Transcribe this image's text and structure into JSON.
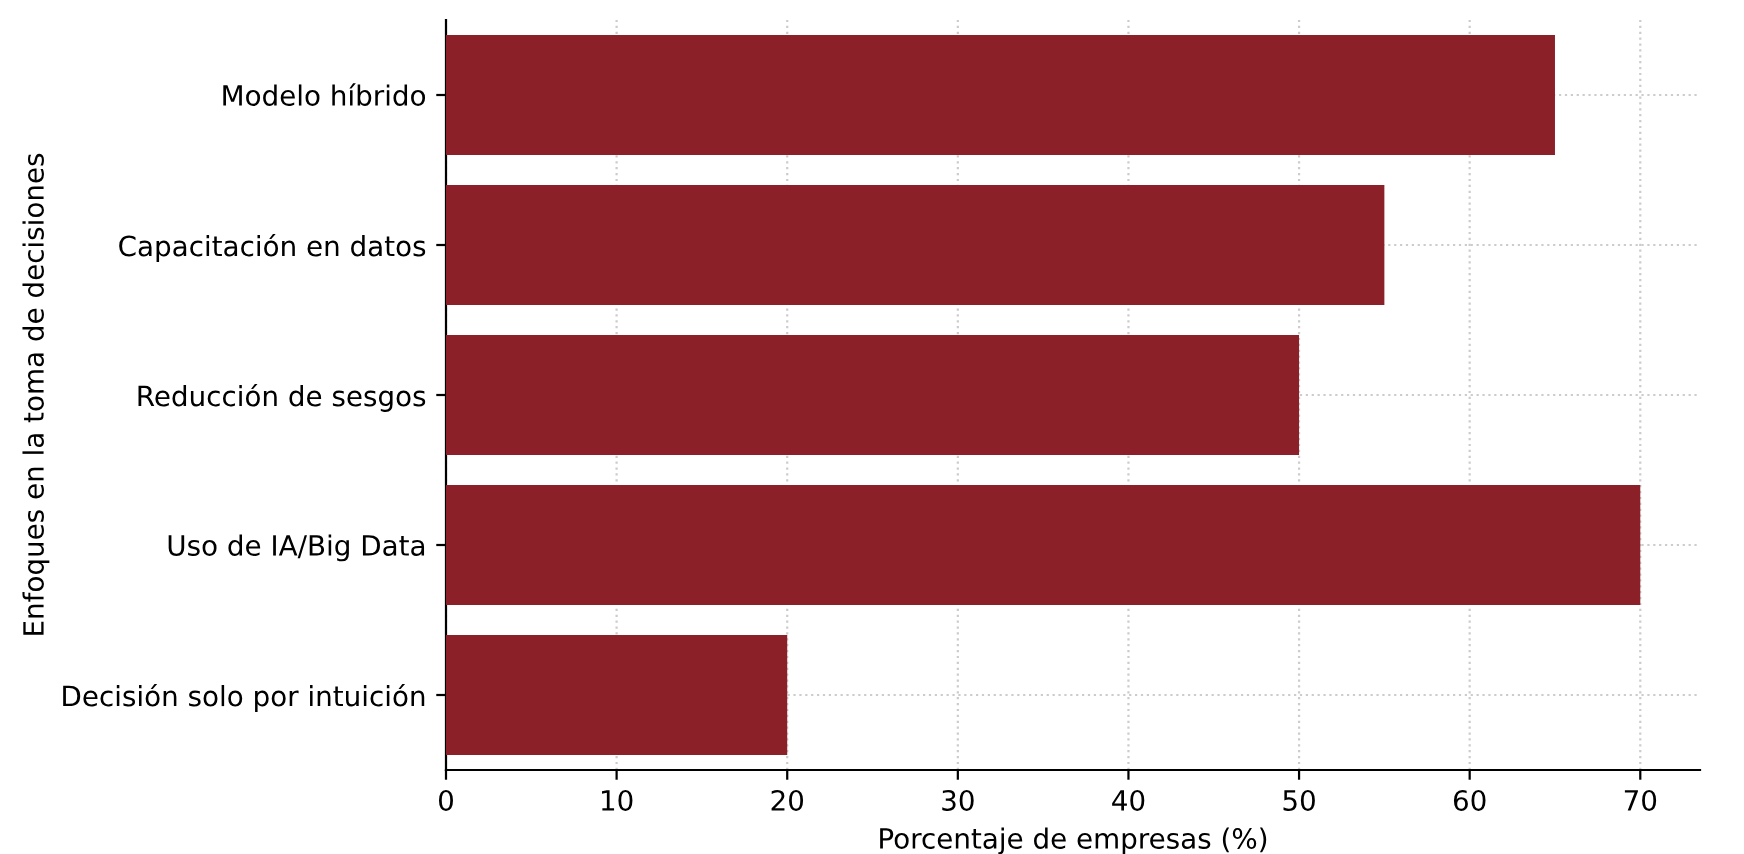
{
  "chart_data": {
    "type": "bar",
    "orientation": "horizontal",
    "categories": [
      "Modelo híbrido",
      "Capacitación en datos",
      "Reducción de sesgos",
      "Uso de IA/Big Data",
      "Decisión solo por intuición"
    ],
    "values": [
      65,
      55,
      50,
      70,
      20
    ],
    "color": "#8b2029",
    "xlabel": "Porcentaje de empresas (%)",
    "ylabel": "Enfoques en la toma de decisiones",
    "xlim": [
      0,
      73.5
    ],
    "xticks": [
      0,
      10,
      20,
      30,
      40,
      50,
      60,
      70
    ],
    "grid": true,
    "line_style": "dotted"
  }
}
